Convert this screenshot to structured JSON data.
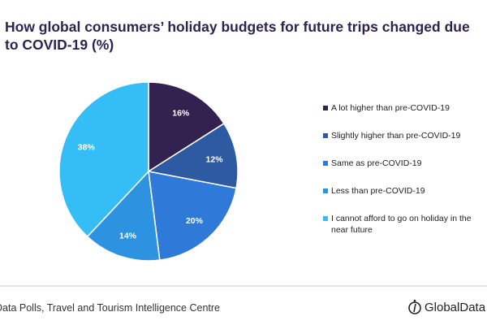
{
  "chart_data": {
    "type": "pie",
    "title": "How global consumers’ holiday budgets for future trips changed due to COVID-19 (%)",
    "start": "12 o'clock, clockwise",
    "legend_position": "right",
    "slices": [
      {
        "label": "A lot higher than pre-COVID-19",
        "value": 16,
        "data_label": "16%",
        "color": "#33224f"
      },
      {
        "label": "Slightly higher than pre-COVID-19",
        "value": 12,
        "data_label": "12%",
        "color": "#2d5aa0"
      },
      {
        "label": "Same as pre-COVID-19",
        "value": 20,
        "data_label": "20%",
        "color": "#2f7ad8"
      },
      {
        "label": "Less than pre-COVID-19",
        "value": 14,
        "data_label": "14%",
        "color": "#2d93e0"
      },
      {
        "label": "I cannot afford to go on holiday in the near future",
        "value": 38,
        "data_label": "38%",
        "color": "#35bdf5"
      }
    ]
  },
  "footer": {
    "source": "Data Polls, Travel and Tourism Intelligence Centre",
    "logo": "GlobalData"
  }
}
